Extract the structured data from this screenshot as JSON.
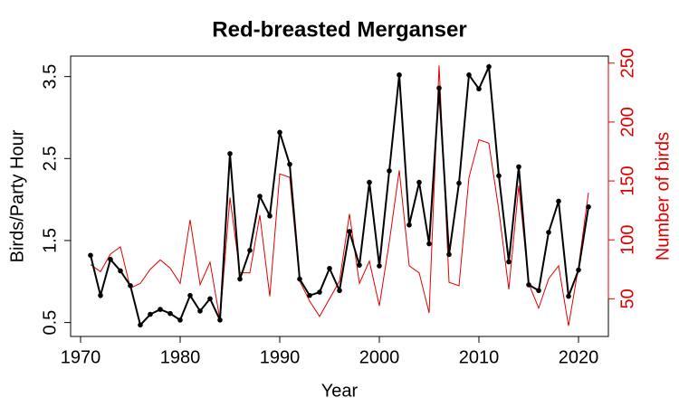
{
  "chart_data": {
    "type": "line",
    "title": "Red-breasted Merganser",
    "xlabel": "Year",
    "ylabel": "Birds/Party Hour",
    "y2label": "Number of birds",
    "x": [
      1971,
      1972,
      1973,
      1974,
      1975,
      1976,
      1977,
      1978,
      1979,
      1980,
      1981,
      1982,
      1983,
      1984,
      1985,
      1986,
      1987,
      1988,
      1989,
      1990,
      1991,
      1992,
      1993,
      1994,
      1995,
      1996,
      1997,
      1998,
      1999,
      2000,
      2001,
      2002,
      2003,
      2004,
      2005,
      2006,
      2007,
      2008,
      2009,
      2010,
      2011,
      2012,
      2013,
      2014,
      2015,
      2016,
      2017,
      2018,
      2019,
      2020,
      2021
    ],
    "series": [
      {
        "name": "Birds/Party Hour",
        "color": "#000000",
        "markers": true,
        "values": [
          1.32,
          0.83,
          1.27,
          1.13,
          0.95,
          0.47,
          0.6,
          0.66,
          0.61,
          0.53,
          0.83,
          0.64,
          0.79,
          0.53,
          2.56,
          1.03,
          1.38,
          2.04,
          1.8,
          2.82,
          2.43,
          1.03,
          0.83,
          0.87,
          1.16,
          0.89,
          1.61,
          1.2,
          2.21,
          1.19,
          2.35,
          3.52,
          1.69,
          2.21,
          1.46,
          3.36,
          1.33,
          2.2,
          3.52,
          3.35,
          3.62,
          2.29,
          1.24,
          2.4,
          0.96,
          0.89,
          1.6,
          1.98,
          0.82,
          1.14,
          1.91
        ]
      },
      {
        "name": "Number of birds",
        "color": "#e00000",
        "axis": "y2",
        "markers": false,
        "values": [
          79,
          73,
          88,
          94,
          59,
          63,
          75,
          83,
          76,
          63,
          117,
          62,
          81,
          32,
          136,
          72,
          72,
          121,
          52,
          156,
          153,
          65,
          48,
          35,
          50,
          65,
          122,
          63,
          82,
          44,
          98,
          159,
          78,
          72,
          38,
          248,
          64,
          61,
          153,
          185,
          182,
          125,
          58,
          146,
          63,
          42,
          67,
          78,
          27,
          77,
          140
        ]
      }
    ],
    "xlim": [
      1969,
      2023
    ],
    "xticks": [
      1970,
      1980,
      1990,
      2000,
      2010,
      2020
    ],
    "ylim": [
      0.33,
      3.75
    ],
    "yticks": [
      0.5,
      1.5,
      2.5,
      3.5
    ],
    "y2lim": [
      18,
      256
    ],
    "y2ticks": [
      50,
      100,
      150,
      200,
      250
    ]
  }
}
